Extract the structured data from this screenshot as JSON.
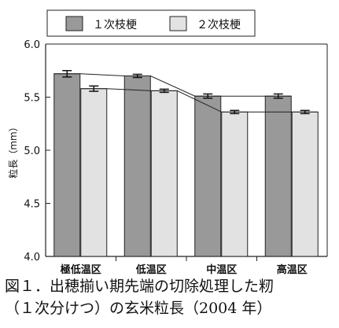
{
  "chart_data": {
    "type": "bar",
    "categories": [
      "極低温区",
      "低温区",
      "中温区",
      "高温区"
    ],
    "series": [
      {
        "name": "１次枝梗",
        "values": [
          5.72,
          5.7,
          5.51,
          5.51
        ],
        "errors": [
          0.03,
          0.015,
          0.02,
          0.02
        ],
        "color": "#999999"
      },
      {
        "name": "２次枝梗",
        "values": [
          5.58,
          5.56,
          5.36,
          5.36
        ],
        "errors": [
          0.025,
          0.015,
          0.015,
          0.015
        ],
        "color": "#e2e2e2"
      }
    ],
    "ylabel": "粒長",
    "ylabel_unit": "（mm）",
    "ylim": [
      4.0,
      6.0
    ],
    "yticks": [
      "6.0",
      "5.5",
      "5.0",
      "4.5",
      "4.0"
    ],
    "legend_position": "top"
  },
  "caption": {
    "line1": "図１．出穂揃い期先端の切除処理した籾",
    "line2": "（１次分けつ）の玄米粒長（2004 年）"
  }
}
